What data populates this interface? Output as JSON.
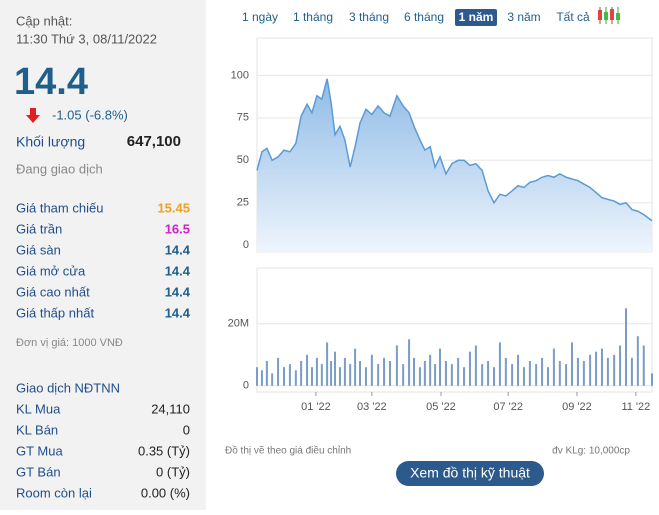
{
  "update": {
    "label": "Cập nhật:",
    "time": "11:30 Thứ 3, 08/11/2022"
  },
  "price": "14.4",
  "change": "-1.05 (-6.8%)",
  "volume": {
    "label": "Khối lượng",
    "value": "647,100"
  },
  "status": "Đang giao dịch",
  "prices": [
    {
      "label": "Giá tham chiếu",
      "value": "15.45",
      "color": "#f0a020"
    },
    {
      "label": "Giá trần",
      "value": "16.5",
      "color": "#d020d0"
    },
    {
      "label": "Giá sàn",
      "value": "14.4",
      "color": "#1f5f8b"
    },
    {
      "label": "Giá mở cửa",
      "value": "14.4",
      "color": "#1f5f8b"
    },
    {
      "label": "Giá cao nhất",
      "value": "14.4",
      "color": "#1f5f8b"
    },
    {
      "label": "Giá thấp nhất",
      "value": "14.4",
      "color": "#1f5f8b"
    }
  ],
  "unit_note": "Đơn vị giá: 1000 VNĐ",
  "foreign": {
    "title": "Giao dịch NĐTNN",
    "rows": [
      {
        "label": "KL Mua",
        "value": "24,110"
      },
      {
        "label": "KL Bán",
        "value": "0"
      },
      {
        "label": "GT Mua",
        "value": "0.35 (Tỷ)"
      },
      {
        "label": "GT Bán",
        "value": "0 (Tỷ)"
      },
      {
        "label": "Room còn lại",
        "value": "0.00 (%)"
      }
    ]
  },
  "tabs": {
    "items": [
      "1 ngày",
      "1 tháng",
      "3 tháng",
      "6 tháng",
      "1 năm",
      "3 năm",
      "Tất cả"
    ],
    "active": 4
  },
  "chart_data": [
    {
      "type": "area",
      "color": "#5b9bd5",
      "grid": true,
      "x": [
        0,
        0.15,
        0.3,
        0.46,
        0.64,
        0.82,
        1.0,
        1.18,
        1.34,
        1.52,
        1.67,
        1.82,
        1.97,
        2.13,
        2.25,
        2.37,
        2.52,
        2.67,
        2.83,
        2.98,
        3.13,
        3.31,
        3.49,
        3.68,
        3.86,
        4.04,
        4.25,
        4.44,
        4.62,
        4.77,
        4.95,
        5.1,
        5.26,
        5.41,
        5.56,
        5.74,
        5.92,
        6.11,
        6.29,
        6.47,
        6.65,
        6.84,
        7.02,
        7.2,
        7.38,
        7.56,
        7.75,
        7.93,
        8.11,
        8.29,
        8.48,
        8.66,
        8.84,
        9.02,
        9.2,
        9.39,
        9.57,
        9.75,
        9.93,
        10.12,
        10.3,
        10.48,
        10.66,
        10.85,
        11.03,
        11.21,
        11.39,
        11.57,
        11.75,
        12.0
      ],
      "values": [
        44,
        55,
        57,
        50,
        52,
        56,
        55,
        60,
        76,
        83,
        78,
        88,
        86,
        98,
        84,
        65,
        70,
        62,
        46,
        58,
        72,
        80,
        77,
        82,
        78,
        76,
        88,
        82,
        78,
        70,
        62,
        56,
        58,
        46,
        52,
        42,
        48,
        50,
        50,
        47,
        48,
        44,
        32,
        25,
        30,
        29,
        32,
        35,
        34,
        37,
        38,
        40,
        41,
        40,
        42,
        40,
        39,
        38,
        36,
        34,
        31,
        28,
        27,
        26,
        24,
        25,
        21,
        20,
        18,
        14.4
      ],
      "xlim": [
        0,
        12
      ],
      "ylim": [
        -4,
        122
      ],
      "yticks": [
        0,
        25,
        50,
        75,
        100
      ]
    },
    {
      "type": "bar",
      "color": "#7a9cc6",
      "grid": true,
      "x": [
        0,
        0.15,
        0.3,
        0.46,
        0.64,
        0.82,
        1.0,
        1.18,
        1.34,
        1.52,
        1.67,
        1.82,
        1.97,
        2.13,
        2.25,
        2.37,
        2.52,
        2.67,
        2.83,
        2.98,
        3.13,
        3.31,
        3.49,
        3.68,
        3.86,
        4.04,
        4.25,
        4.44,
        4.62,
        4.77,
        4.95,
        5.1,
        5.26,
        5.41,
        5.56,
        5.74,
        5.92,
        6.11,
        6.29,
        6.47,
        6.65,
        6.84,
        7.02,
        7.2,
        7.38,
        7.56,
        7.75,
        7.93,
        8.11,
        8.29,
        8.48,
        8.66,
        8.84,
        9.02,
        9.2,
        9.39,
        9.57,
        9.75,
        9.93,
        10.12,
        10.3,
        10.48,
        10.66,
        10.85,
        11.03,
        11.21,
        11.39,
        11.57,
        11.75,
        12.0
      ],
      "values": [
        6000000,
        5000000,
        8000000,
        4000000,
        9000000,
        6000000,
        7000000,
        5000000,
        8000000,
        10000000,
        6000000,
        9000000,
        7000000,
        14000000,
        8000000,
        11000000,
        6000000,
        9000000,
        7000000,
        12000000,
        8000000,
        6000000,
        10000000,
        7000000,
        9000000,
        8000000,
        13000000,
        7000000,
        15000000,
        9000000,
        6000000,
        8000000,
        10000000,
        7000000,
        12000000,
        8000000,
        7000000,
        9000000,
        6000000,
        11000000,
        13000000,
        7000000,
        8000000,
        6000000,
        14000000,
        9000000,
        7000000,
        10000000,
        6000000,
        8000000,
        7000000,
        9000000,
        6000000,
        12000000,
        8000000,
        7000000,
        14000000,
        9000000,
        8000000,
        10000000,
        11000000,
        12000000,
        9000000,
        10000000,
        13000000,
        25000000,
        9000000,
        16000000,
        13000000,
        4000000
      ],
      "xlim": [
        0,
        12
      ],
      "ylim": [
        -2000000,
        38000000
      ],
      "yticks": [
        0,
        {
          "value": 20000000,
          "label": "20M"
        }
      ],
      "xticks": [
        {
          "value": 1.79,
          "label": "01 '22"
        },
        {
          "value": 3.49,
          "label": "03 '22"
        },
        {
          "value": 5.59,
          "label": "05 '22"
        },
        {
          "value": 7.63,
          "label": "07 '22"
        },
        {
          "value": 9.72,
          "label": "09 '22"
        },
        {
          "value": 11.51,
          "label": "11 '22"
        }
      ]
    }
  ],
  "notes": {
    "adjusted": "Đồ thị vẽ theo giá điều chỉnh",
    "volume_unit": "đv KLg: 10,000cp"
  },
  "button": "Xem đồ thị kỹ thuật"
}
